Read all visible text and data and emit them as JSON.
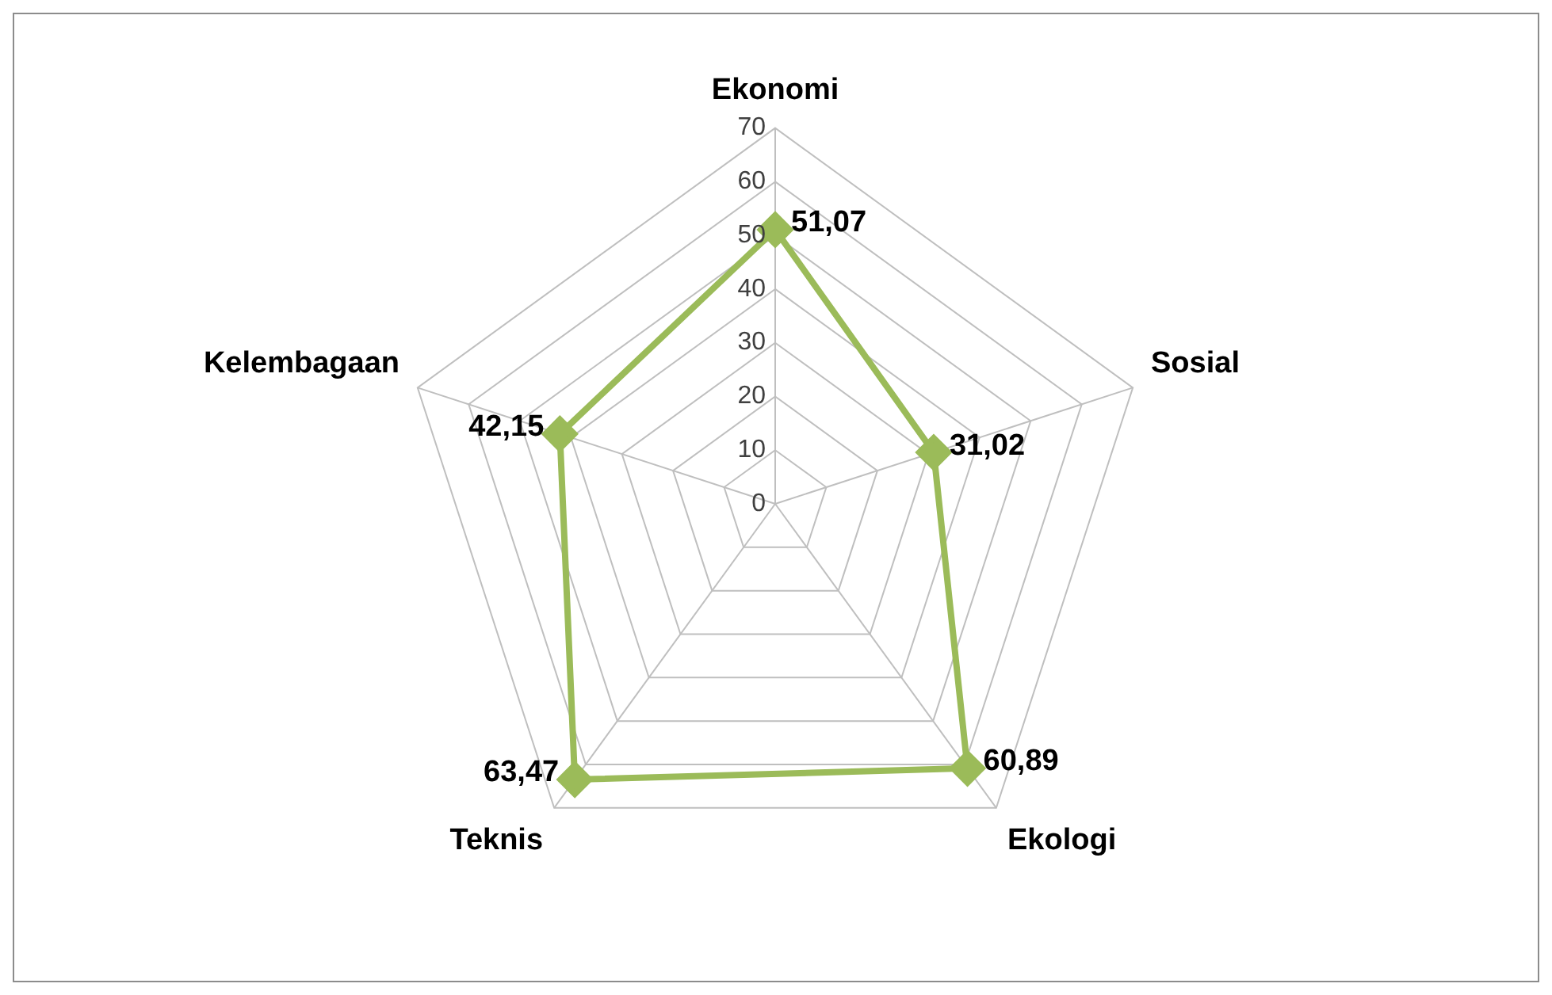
{
  "chart_data": {
    "type": "radar",
    "categories": [
      "Ekonomi",
      "Sosial",
      "Ekologi",
      "Teknis",
      "Kelembagaan"
    ],
    "series": [
      {
        "color": "#9bbb59",
        "values": [
          51.07,
          31.02,
          60.89,
          63.47,
          42.15
        ],
        "value_labels": [
          "51,07",
          "31,02",
          "60,89",
          "63,47",
          "42,15"
        ]
      }
    ],
    "ylim": [
      0,
      70
    ],
    "yticks": [
      0,
      10,
      20,
      30,
      40,
      50,
      60,
      70
    ],
    "marker": "diamond",
    "legend": false,
    "grid": true
  }
}
